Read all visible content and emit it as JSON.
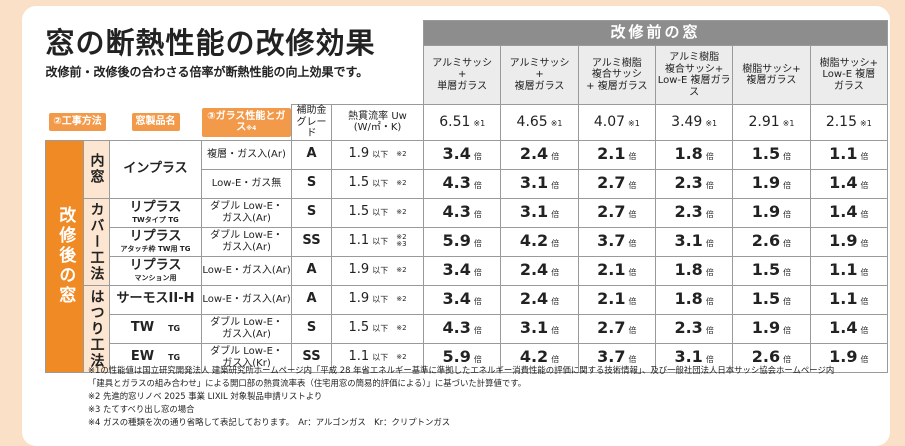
{
  "header": {
    "title": "窓の断熱性能の改修効果",
    "subtitle": "改修前・改修後の合わさる倍率が断熱性能の向上効果です。"
  },
  "before": {
    "heading": "改修前の窓",
    "columns": [
      {
        "label": [
          "アルミサッシ",
          "+",
          "単層ガラス"
        ],
        "uw": 6.51,
        "note": "※1"
      },
      {
        "label": [
          "アルミサッシ",
          "+",
          "複層ガラス"
        ],
        "uw": 4.65,
        "note": "※1"
      },
      {
        "label": [
          "アルミ樹脂",
          "複合サッシ",
          "+ 複層ガラス"
        ],
        "uw": 4.07,
        "note": "※1"
      },
      {
        "label": [
          "アルミ樹脂",
          "複合サッシ+",
          "Low-E 複層ガラス"
        ],
        "uw": 3.49,
        "note": "※1"
      },
      {
        "label": [
          "樹脂サッシ+",
          "複層ガラス"
        ],
        "uw": 2.91,
        "note": "※1"
      },
      {
        "label": [
          "樹脂サッシ+",
          "Low-E 複層",
          "ガラス"
        ],
        "uw": 2.15,
        "note": "※1"
      }
    ]
  },
  "labels": {
    "method": "②工事方法",
    "product": "窓製品名",
    "glass": "③ガラス性能とガス",
    "glass_note": "※4",
    "grade": [
      "補助金",
      "グレード"
    ],
    "uw": [
      "熱貫流率 Uw",
      "(W/㎡・K)"
    ]
  },
  "after_label": "改修後の窓",
  "below": "以下",
  "times": "倍",
  "methods": [
    {
      "label": "内窓",
      "products": [
        {
          "name": "インプラス",
          "variants": [
            {
              "glass": [
                "複層・ガス入(Ar)"
              ],
              "grade": "A",
              "uw": 1.9,
              "uw_note": [
                "※2"
              ],
              "ratios": [
                3.4,
                2.4,
                2.1,
                1.8,
                1.5,
                1.1
              ]
            },
            {
              "glass": [
                "Low-E・ガス無"
              ],
              "grade": "S",
              "uw": 1.5,
              "uw_note": [
                "※2"
              ],
              "ratios": [
                4.3,
                3.1,
                2.7,
                2.3,
                1.9,
                1.4
              ]
            }
          ]
        }
      ]
    },
    {
      "label": "カバー工法",
      "products": [
        {
          "name": "リプラス",
          "sub": "TWタイプ TG",
          "variants": [
            {
              "glass": [
                "ダブル Low-E・",
                "ガス入(Ar)"
              ],
              "grade": "S",
              "uw": 1.5,
              "uw_note": [
                "※2"
              ],
              "ratios": [
                4.3,
                3.1,
                2.7,
                2.3,
                1.9,
                1.4
              ]
            }
          ]
        },
        {
          "name": "リプラス",
          "sub": "アタッチ枠 TW用 TG",
          "variants": [
            {
              "glass": [
                "ダブル Low-E・",
                "ガス入(Ar)"
              ],
              "grade": "SS",
              "uw": 1.1,
              "uw_note": [
                "※2",
                "※3"
              ],
              "ratios": [
                5.9,
                4.2,
                3.7,
                3.1,
                2.6,
                1.9
              ]
            }
          ]
        },
        {
          "name": "リプラス",
          "sub": "マンション用",
          "variants": [
            {
              "glass": [
                "Low-E・ガス入(Ar)"
              ],
              "grade": "A",
              "uw": 1.9,
              "uw_note": [
                "※2"
              ],
              "ratios": [
                3.4,
                2.4,
                2.1,
                1.8,
                1.5,
                1.1
              ]
            }
          ]
        }
      ]
    },
    {
      "label": "はつり工法",
      "products": [
        {
          "name": "サーモスII-H",
          "variants": [
            {
              "glass": [
                "Low-E・ガス入(Ar)"
              ],
              "grade": "A",
              "uw": 1.9,
              "uw_note": [
                "※2"
              ],
              "ratios": [
                3.4,
                2.4,
                2.1,
                1.8,
                1.5,
                1.1
              ]
            }
          ]
        },
        {
          "name": "TW",
          "tag": "TG",
          "variants": [
            {
              "glass": [
                "ダブル Low-E・",
                "ガス入(Ar)"
              ],
              "grade": "S",
              "uw": 1.5,
              "uw_note": [
                "※2"
              ],
              "ratios": [
                4.3,
                3.1,
                2.7,
                2.3,
                1.9,
                1.4
              ]
            }
          ]
        },
        {
          "name": "EW",
          "tag": "TG",
          "variants": [
            {
              "glass": [
                "ダブル Low-E・",
                "ガス入(Kr)"
              ],
              "grade": "SS",
              "uw": 1.1,
              "uw_note": [
                "※2"
              ],
              "ratios": [
                5.9,
                4.2,
                3.7,
                3.1,
                2.6,
                1.9
              ]
            }
          ]
        }
      ]
    }
  ],
  "footnotes": [
    "※1の性能値は国立研究開発法人 建築研究所ホームページ内「平成 28 年省エネルギー基準に準拠したエネルギー消費性能の評価に関する技術情報」、及び一般社団法人日本サッシ協会ホームページ内",
    "「建具とガラスの組み合わせ」による開口部の熱貫流率表（住宅用窓の簡易的評価による）」に基づいた計算値です。",
    "※2 先進的窓リノベ 2025 事業 LIXIL 対象製品申請リストより",
    "※3 たてすべり出し窓の場合",
    "※4 ガスの種類を次の通り省略して表記しております。　Ar：アルゴンガス　Kr：クリプトンガス"
  ]
}
